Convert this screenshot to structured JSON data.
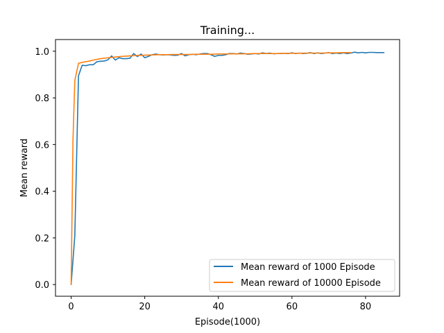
{
  "chart_data": {
    "type": "line",
    "title": "Training...",
    "xlabel": "Episode(1000)",
    "ylabel": "Mean reward",
    "xlim": [
      -4.25,
      89.25
    ],
    "ylim": [
      -0.05,
      1.05
    ],
    "xticks": [
      0,
      20,
      40,
      60,
      80
    ],
    "yticks": [
      0.0,
      0.2,
      0.4,
      0.6,
      0.8,
      1.0
    ],
    "ytick_labels": [
      "0.0",
      "0.2",
      "0.4",
      "0.6",
      "0.8",
      "1.0"
    ],
    "grid": false,
    "legend_position": "lower-right",
    "series": [
      {
        "name": "Mean reward of 1000 Episode",
        "color": "#1f77b4",
        "x": [
          0,
          1,
          2,
          3,
          4,
          5,
          6,
          7,
          8,
          9,
          10,
          11,
          12,
          13,
          14,
          15,
          16,
          17,
          18,
          19,
          20,
          21,
          22,
          23,
          24,
          25,
          26,
          27,
          28,
          29,
          30,
          31,
          32,
          33,
          34,
          35,
          36,
          37,
          38,
          39,
          40,
          41,
          42,
          43,
          44,
          45,
          46,
          47,
          48,
          49,
          50,
          51,
          52,
          53,
          54,
          55,
          56,
          57,
          58,
          59,
          60,
          61,
          62,
          63,
          64,
          65,
          66,
          67,
          68,
          69,
          70,
          71,
          72,
          73,
          74,
          75,
          76,
          77,
          78,
          79,
          80,
          81,
          82,
          83,
          84,
          85
        ],
        "values": [
          0.0,
          0.21,
          0.895,
          0.94,
          0.938,
          0.942,
          0.942,
          0.955,
          0.957,
          0.958,
          0.963,
          0.98,
          0.962,
          0.972,
          0.968,
          0.968,
          0.97,
          0.99,
          0.977,
          0.988,
          0.972,
          0.978,
          0.985,
          0.988,
          0.985,
          0.984,
          0.985,
          0.984,
          0.982,
          0.983,
          0.99,
          0.98,
          0.985,
          0.987,
          0.985,
          0.988,
          0.99,
          0.99,
          0.985,
          0.978,
          0.982,
          0.982,
          0.985,
          0.99,
          0.99,
          0.988,
          0.992,
          0.99,
          0.987,
          0.988,
          0.99,
          0.988,
          0.993,
          0.99,
          0.992,
          0.989,
          0.99,
          0.99,
          0.991,
          0.99,
          0.993,
          0.99,
          0.992,
          0.99,
          0.991,
          0.994,
          0.99,
          0.993,
          0.99,
          0.992,
          0.994,
          0.99,
          0.992,
          0.99,
          0.993,
          0.99,
          0.992,
          0.996,
          0.993,
          0.995,
          0.993,
          0.995,
          0.995,
          0.994,
          0.994,
          0.994
        ]
      },
      {
        "name": "Mean reward of 10000 Episode",
        "color": "#ff7f0e",
        "x": [
          0,
          0.5,
          1,
          2,
          3,
          4,
          5,
          6,
          7,
          8,
          9,
          10,
          12,
          14,
          16,
          18,
          20,
          22,
          24,
          26,
          28,
          30,
          32,
          34,
          36,
          38,
          40,
          42,
          44,
          46,
          48,
          50,
          52,
          54,
          56,
          58,
          60,
          62,
          64,
          66,
          68,
          70,
          72,
          74,
          76
        ],
        "values": [
          0.0,
          0.62,
          0.875,
          0.948,
          0.952,
          0.955,
          0.958,
          0.962,
          0.965,
          0.968,
          0.97,
          0.972,
          0.975,
          0.978,
          0.98,
          0.982,
          0.983,
          0.984,
          0.985,
          0.985,
          0.986,
          0.986,
          0.986,
          0.987,
          0.987,
          0.987,
          0.988,
          0.988,
          0.989,
          0.989,
          0.989,
          0.99,
          0.99,
          0.99,
          0.99,
          0.991,
          0.991,
          0.991,
          0.992,
          0.992,
          0.992,
          0.993,
          0.993,
          0.994,
          0.994
        ]
      }
    ]
  }
}
